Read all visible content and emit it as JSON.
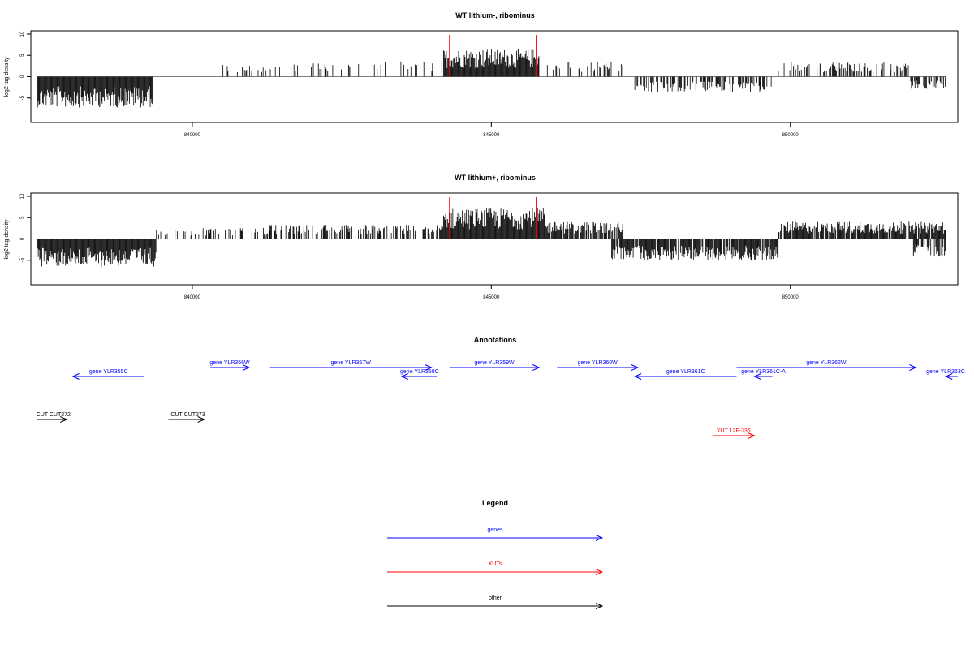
{
  "colors": {
    "gene": "#0000ff",
    "xut": "#ff0000",
    "other": "#000000",
    "marker": "#ff0000"
  },
  "chart_data": [
    {
      "type": "bar",
      "title": "WT lithium-, ribominus",
      "ylabel": "log2 tag density",
      "xlim": [
        837300,
        852800
      ],
      "ylim": [
        -10,
        10
      ],
      "xticks": [
        840000,
        845000,
        850000
      ],
      "xtick_labels": [
        "840000",
        "845000",
        "850000"
      ],
      "yticks": [
        10,
        5,
        0,
        -5
      ],
      "ytick_labels": [
        "10",
        "5",
        "0",
        "-5"
      ],
      "markers_x": [
        844300,
        845750
      ],
      "segments": [
        {
          "x0": 837400,
          "x1": 839350,
          "mean": -5,
          "density": 1.0
        },
        {
          "x0": 840500,
          "x1": 842900,
          "mean": 2.2,
          "density": 0.15
        },
        {
          "x0": 842900,
          "x1": 844200,
          "mean": 2.5,
          "density": 0.2
        },
        {
          "x0": 844200,
          "x1": 845800,
          "mean": 4.5,
          "density": 1.0
        },
        {
          "x0": 845900,
          "x1": 847200,
          "mean": 2.5,
          "density": 0.3
        },
        {
          "x0": 847400,
          "x1": 849700,
          "mean": -2.5,
          "density": 0.5
        },
        {
          "x0": 849800,
          "x1": 852000,
          "mean": 2.3,
          "density": 0.4
        },
        {
          "x0": 852000,
          "x1": 852600,
          "mean": -2,
          "density": 0.6
        }
      ]
    },
    {
      "type": "bar",
      "title": "WT lithium+, ribominus",
      "ylabel": "log2 tag density",
      "xlim": [
        837300,
        852800
      ],
      "ylim": [
        -10,
        10
      ],
      "xticks": [
        840000,
        845000,
        850000
      ],
      "xtick_labels": [
        "840000",
        "845000",
        "850000"
      ],
      "yticks": [
        10,
        5,
        0,
        -5
      ],
      "ytick_labels": [
        "10",
        "5",
        "0",
        "-5"
      ],
      "markers_x": [
        844300,
        845750
      ],
      "segments": [
        {
          "x0": 837400,
          "x1": 839400,
          "mean": -4.5,
          "density": 1.0
        },
        {
          "x0": 839400,
          "x1": 841300,
          "mean": 1.8,
          "density": 0.25
        },
        {
          "x0": 841300,
          "x1": 844200,
          "mean": 2.3,
          "density": 0.5
        },
        {
          "x0": 844200,
          "x1": 845900,
          "mean": 5,
          "density": 1.0
        },
        {
          "x0": 845900,
          "x1": 847200,
          "mean": 2.8,
          "density": 0.8
        },
        {
          "x0": 847000,
          "x1": 849800,
          "mean": -3.5,
          "density": 0.9
        },
        {
          "x0": 849800,
          "x1": 852600,
          "mean": 2.8,
          "density": 0.9
        },
        {
          "x0": 852000,
          "x1": 852600,
          "mean": -3,
          "density": 0.7
        }
      ]
    }
  ],
  "annotations": {
    "title": "Annotations",
    "genes": [
      {
        "label": "gene YLR355C",
        "x0": 839200,
        "x1": 838000,
        "row": 1
      },
      {
        "label": "gene YLR356W",
        "x0": 840300,
        "x1": 840950,
        "row": 0
      },
      {
        "label": "gene YLR357W",
        "x0": 841300,
        "x1": 844000,
        "row": 0
      },
      {
        "label": "gene YLR358C",
        "x0": 844100,
        "x1": 843500,
        "row": 1
      },
      {
        "label": "gene YLR359W",
        "x0": 844300,
        "x1": 845800,
        "row": 0
      },
      {
        "label": "gene YLR360W",
        "x0": 846100,
        "x1": 847450,
        "row": 0
      },
      {
        "label": "gene YLR361C",
        "x0": 849100,
        "x1": 847400,
        "row": 1
      },
      {
        "label": "gene YLR361C-A",
        "x0": 849700,
        "x1": 849400,
        "row": 1
      },
      {
        "label": "gene YLR362W",
        "x0": 849100,
        "x1": 852100,
        "row": 0
      },
      {
        "label": "gene YLR363C",
        "x0": 852800,
        "x1": 852600,
        "row": 1
      }
    ],
    "cuts": [
      {
        "label": "CUT CUT272",
        "x0": 837400,
        "x1": 837900
      },
      {
        "label": "CUT CUT273",
        "x0": 839600,
        "x1": 840200
      }
    ],
    "xuts": [
      {
        "label": "XUT 12F-336",
        "x0": 848700,
        "x1": 849400
      }
    ]
  },
  "legend": {
    "title": "Legend",
    "items": [
      {
        "label": "genes",
        "kind": "gene"
      },
      {
        "label": "XUTs",
        "kind": "xut"
      },
      {
        "label": "other",
        "kind": "other"
      }
    ]
  }
}
